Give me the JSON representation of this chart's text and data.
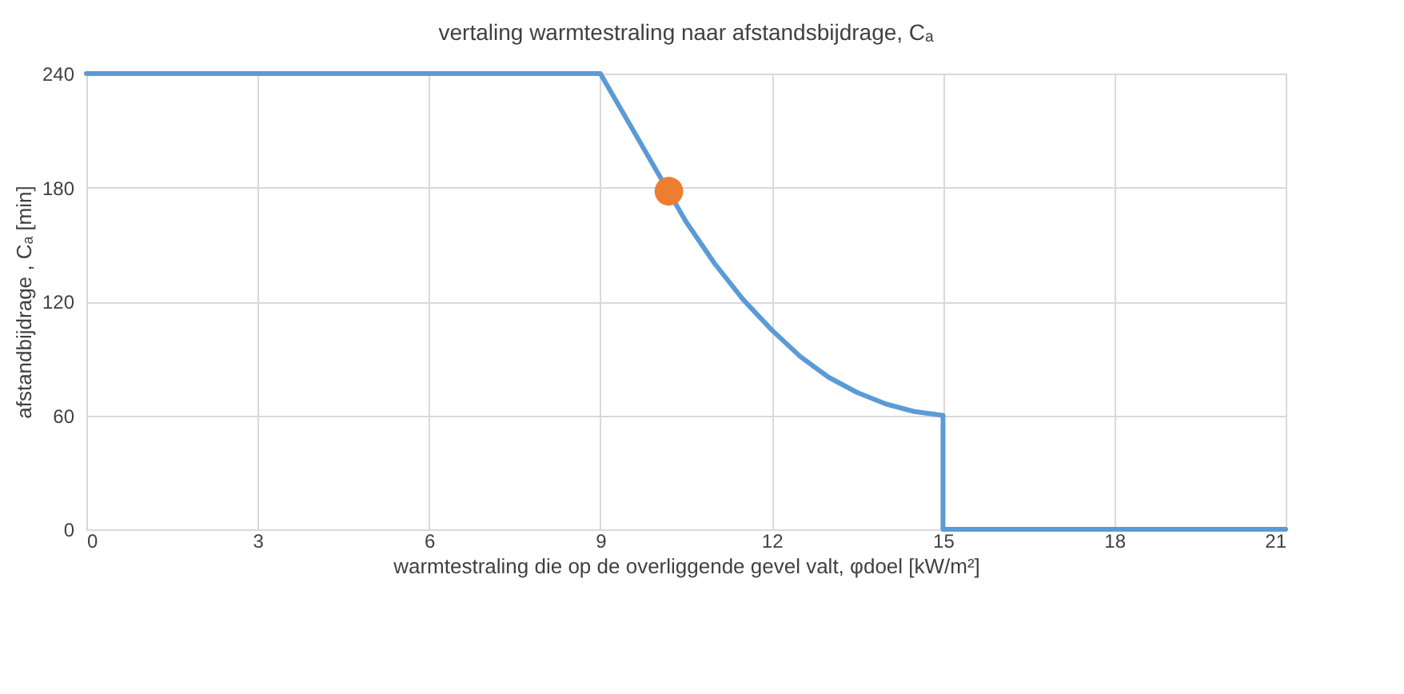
{
  "chart_data": {
    "type": "line",
    "title": "vertaling warmtestraling naar afstandsbijdrage, Cₐ",
    "xlabel": "warmtestraling die op de overliggende gevel valt, φdoel [kW/m²]",
    "ylabel": "afstandbijdrage , Cₐ [min]",
    "series": [
      {
        "color": "#5b9bd5",
        "marker": "none",
        "line_style": "solid",
        "x": [
          0,
          9,
          9.5,
          10,
          10.5,
          11,
          11.5,
          12,
          12.5,
          13,
          13.5,
          14,
          14.5,
          15,
          15,
          21
        ],
        "values": [
          240,
          240,
          214,
          188,
          162,
          140,
          121,
          105,
          91,
          80,
          72,
          66,
          62,
          60,
          0,
          0
        ]
      },
      {
        "type": "scatter",
        "color": "#ed7d31",
        "marker": "circle",
        "x": [
          10.2
        ],
        "values": [
          178
        ]
      }
    ],
    "xlim": [
      0,
      21
    ],
    "xticks": [
      0,
      3,
      6,
      9,
      12,
      15,
      18,
      21
    ],
    "ylim": [
      0,
      240
    ],
    "yticks": [
      0,
      60,
      120,
      180,
      240
    ],
    "grid": true
  }
}
